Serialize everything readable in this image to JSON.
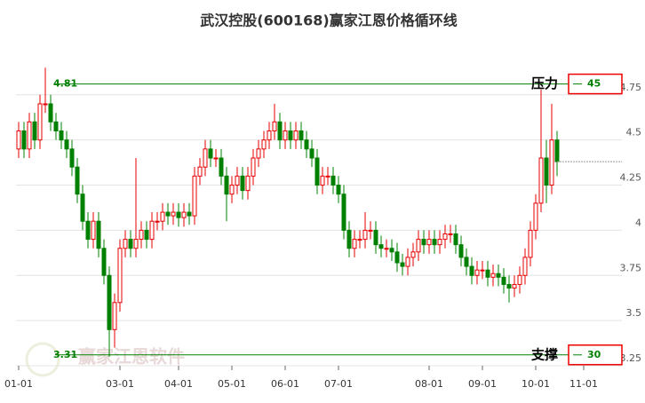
{
  "chart_data": {
    "type": "candlestick",
    "title": "武汉控股(600168)赢家江恩价格循环线",
    "watermark": "赢家江恩软件",
    "up_color": "#e60000",
    "down_color": "#008000",
    "grid": true,
    "ylim": [
      3.25,
      4.98
    ],
    "yticks": [
      3.25,
      3.5,
      3.75,
      4,
      4.25,
      4.5,
      4.75
    ],
    "levels": [
      {
        "name": "压力",
        "value": 4.81,
        "cycle": 45,
        "color": "#008000"
      },
      {
        "name": "支撑",
        "value": 3.31,
        "cycle": 30,
        "color": "#008000"
      }
    ],
    "categories": [
      "01-01",
      null,
      null,
      null,
      null,
      null,
      null,
      null,
      null,
      null,
      null,
      null,
      null,
      null,
      null,
      null,
      null,
      null,
      null,
      "03-01",
      null,
      null,
      null,
      null,
      null,
      null,
      null,
      null,
      null,
      null,
      "04-01",
      null,
      null,
      null,
      null,
      null,
      null,
      null,
      null,
      null,
      "05-01",
      null,
      null,
      null,
      null,
      null,
      null,
      null,
      null,
      null,
      "06-01",
      null,
      null,
      null,
      null,
      null,
      null,
      null,
      null,
      null,
      "07-01",
      null,
      null,
      null,
      null,
      null,
      null,
      null,
      null,
      null,
      null,
      null,
      null,
      null,
      null,
      null,
      null,
      "08-01",
      null,
      null,
      null,
      null,
      null,
      null,
      null,
      null,
      null,
      "09-01",
      null,
      null,
      null,
      null,
      null,
      null,
      null,
      null,
      null,
      "10-01",
      null,
      null,
      null,
      null,
      null,
      null,
      null,
      null,
      "11-01",
      null
    ],
    "open": [
      4.45,
      4.55,
      4.45,
      4.6,
      4.5,
      4.7,
      4.7,
      4.6,
      4.55,
      4.5,
      4.45,
      4.35,
      4.2,
      4.05,
      3.95,
      4.05,
      3.9,
      3.75,
      3.45,
      3.6,
      3.9,
      3.95,
      3.9,
      3.95,
      4.0,
      3.95,
      4.05,
      4.05,
      4.1,
      4.08,
      4.1,
      4.07,
      4.1,
      4.08,
      4.3,
      4.35,
      4.45,
      4.4,
      4.4,
      4.3,
      4.2,
      4.25,
      4.3,
      4.22,
      4.3,
      4.4,
      4.45,
      4.5,
      4.55,
      4.6,
      4.5,
      4.55,
      4.5,
      4.55,
      4.5,
      4.45,
      4.4,
      4.25,
      4.3,
      4.3,
      4.25,
      4.2,
      4.0,
      3.9,
      3.95,
      3.95,
      4.0,
      4.0,
      3.92,
      3.9,
      3.9,
      3.88,
      3.82,
      3.8,
      3.85,
      3.88,
      3.95,
      3.92,
      3.95,
      3.92,
      3.95,
      3.98,
      3.98,
      3.92,
      3.85,
      3.8,
      3.75,
      3.78,
      3.78,
      3.74,
      3.76,
      3.74,
      3.7,
      3.68,
      3.7,
      3.75,
      3.85,
      4.0,
      4.15,
      4.4,
      4.25,
      4.5,
      null,
      null,
      null,
      null,
      null,
      null
    ],
    "high": [
      4.6,
      4.6,
      4.65,
      4.65,
      4.75,
      4.9,
      4.75,
      4.65,
      4.6,
      4.55,
      4.5,
      4.4,
      4.25,
      4.1,
      4.1,
      4.1,
      3.95,
      3.8,
      3.65,
      3.95,
      4.0,
      4.0,
      4.4,
      4.05,
      4.05,
      4.1,
      4.1,
      4.15,
      4.15,
      4.15,
      4.15,
      4.15,
      4.15,
      4.35,
      4.4,
      4.5,
      4.5,
      4.45,
      4.45,
      4.35,
      4.3,
      4.35,
      4.35,
      4.35,
      4.45,
      4.5,
      4.55,
      4.6,
      4.7,
      4.65,
      4.6,
      4.6,
      4.6,
      4.6,
      4.55,
      4.5,
      4.45,
      4.35,
      4.35,
      4.35,
      4.3,
      4.25,
      4.05,
      4.0,
      4.0,
      4.1,
      4.05,
      4.05,
      3.97,
      3.95,
      3.95,
      3.93,
      3.87,
      3.9,
      3.93,
      4.0,
      4.0,
      4.0,
      4.0,
      4.0,
      4.03,
      4.03,
      4.03,
      3.97,
      3.9,
      3.85,
      3.83,
      3.83,
      3.83,
      3.81,
      3.81,
      3.79,
      3.75,
      3.75,
      3.8,
      3.9,
      4.05,
      4.2,
      4.78,
      4.5,
      4.7,
      4.55,
      null,
      null,
      null,
      null,
      null,
      null
    ],
    "low": [
      4.4,
      4.4,
      4.4,
      4.45,
      4.45,
      4.65,
      4.55,
      4.5,
      4.45,
      4.4,
      4.3,
      4.15,
      4.0,
      3.9,
      3.9,
      3.85,
      3.7,
      3.3,
      3.35,
      3.55,
      3.85,
      3.85,
      3.85,
      3.9,
      3.9,
      3.9,
      4.0,
      4.0,
      4.03,
      4.03,
      4.02,
      4.02,
      4.03,
      4.03,
      4.25,
      4.3,
      4.35,
      4.35,
      4.25,
      4.05,
      4.15,
      4.2,
      4.17,
      4.17,
      4.25,
      4.35,
      4.4,
      4.45,
      4.5,
      4.45,
      4.45,
      4.45,
      4.45,
      4.45,
      4.4,
      4.35,
      4.2,
      4.2,
      4.25,
      4.2,
      4.15,
      3.95,
      3.85,
      3.85,
      3.9,
      3.9,
      3.95,
      3.87,
      3.85,
      3.85,
      3.83,
      3.77,
      3.75,
      3.75,
      3.8,
      3.83,
      3.87,
      3.87,
      3.87,
      3.87,
      3.9,
      3.93,
      3.87,
      3.8,
      3.75,
      3.7,
      3.7,
      3.73,
      3.69,
      3.69,
      3.69,
      3.65,
      3.6,
      3.63,
      3.65,
      3.7,
      3.8,
      3.95,
      4.1,
      4.15,
      4.2,
      4.3,
      null,
      null,
      null,
      null,
      null,
      null
    ],
    "close": [
      4.55,
      4.45,
      4.6,
      4.5,
      4.7,
      4.7,
      4.6,
      4.55,
      4.5,
      4.45,
      4.35,
      4.2,
      4.05,
      3.95,
      4.05,
      3.9,
      3.75,
      3.45,
      3.6,
      3.9,
      3.95,
      3.9,
      3.95,
      4.0,
      3.95,
      4.05,
      4.05,
      4.1,
      4.08,
      4.1,
      4.07,
      4.1,
      4.08,
      4.3,
      4.35,
      4.45,
      4.4,
      4.4,
      4.3,
      4.2,
      4.25,
      4.3,
      4.22,
      4.3,
      4.4,
      4.45,
      4.5,
      4.55,
      4.6,
      4.5,
      4.55,
      4.5,
      4.55,
      4.5,
      4.45,
      4.4,
      4.25,
      4.3,
      4.3,
      4.25,
      4.2,
      4.0,
      3.9,
      3.95,
      3.95,
      4.0,
      4.0,
      3.92,
      3.9,
      3.9,
      3.88,
      3.82,
      3.8,
      3.85,
      3.88,
      3.95,
      3.92,
      3.95,
      3.92,
      3.95,
      3.98,
      3.98,
      3.92,
      3.85,
      3.8,
      3.75,
      3.78,
      3.78,
      3.74,
      3.76,
      3.74,
      3.7,
      3.68,
      3.7,
      3.75,
      3.85,
      4.0,
      4.15,
      4.4,
      4.25,
      4.5,
      4.38,
      null,
      null,
      null,
      null,
      null,
      null
    ]
  }
}
